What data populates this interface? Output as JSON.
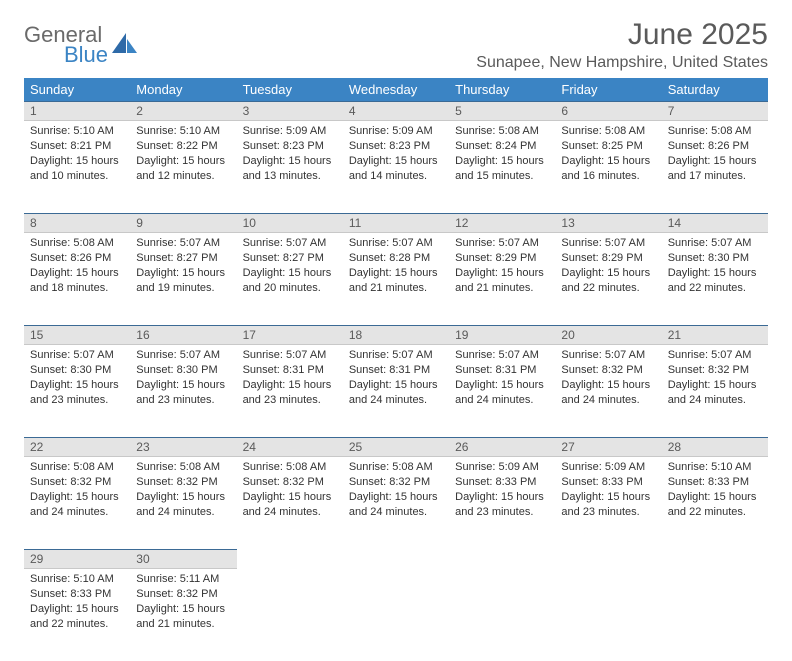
{
  "brand": {
    "part1": "General",
    "part2": "Blue"
  },
  "title": "June 2025",
  "location": "Sunapee, New Hampshire, United States",
  "colors": {
    "header_bg": "#3b84c4",
    "header_fg": "#ffffff",
    "daynum_bg": "#e4e4e4",
    "daynum_border_top": "#3b6a95",
    "text": "#333333",
    "title_color": "#5a5a5a"
  },
  "day_labels": [
    "Sunday",
    "Monday",
    "Tuesday",
    "Wednesday",
    "Thursday",
    "Friday",
    "Saturday"
  ],
  "weeks": [
    [
      {
        "n": "1",
        "sunrise": "Sunrise: 5:10 AM",
        "sunset": "Sunset: 8:21 PM",
        "daylight": "Daylight: 15 hours and 10 minutes."
      },
      {
        "n": "2",
        "sunrise": "Sunrise: 5:10 AM",
        "sunset": "Sunset: 8:22 PM",
        "daylight": "Daylight: 15 hours and 12 minutes."
      },
      {
        "n": "3",
        "sunrise": "Sunrise: 5:09 AM",
        "sunset": "Sunset: 8:23 PM",
        "daylight": "Daylight: 15 hours and 13 minutes."
      },
      {
        "n": "4",
        "sunrise": "Sunrise: 5:09 AM",
        "sunset": "Sunset: 8:23 PM",
        "daylight": "Daylight: 15 hours and 14 minutes."
      },
      {
        "n": "5",
        "sunrise": "Sunrise: 5:08 AM",
        "sunset": "Sunset: 8:24 PM",
        "daylight": "Daylight: 15 hours and 15 minutes."
      },
      {
        "n": "6",
        "sunrise": "Sunrise: 5:08 AM",
        "sunset": "Sunset: 8:25 PM",
        "daylight": "Daylight: 15 hours and 16 minutes."
      },
      {
        "n": "7",
        "sunrise": "Sunrise: 5:08 AM",
        "sunset": "Sunset: 8:26 PM",
        "daylight": "Daylight: 15 hours and 17 minutes."
      }
    ],
    [
      {
        "n": "8",
        "sunrise": "Sunrise: 5:08 AM",
        "sunset": "Sunset: 8:26 PM",
        "daylight": "Daylight: 15 hours and 18 minutes."
      },
      {
        "n": "9",
        "sunrise": "Sunrise: 5:07 AM",
        "sunset": "Sunset: 8:27 PM",
        "daylight": "Daylight: 15 hours and 19 minutes."
      },
      {
        "n": "10",
        "sunrise": "Sunrise: 5:07 AM",
        "sunset": "Sunset: 8:27 PM",
        "daylight": "Daylight: 15 hours and 20 minutes."
      },
      {
        "n": "11",
        "sunrise": "Sunrise: 5:07 AM",
        "sunset": "Sunset: 8:28 PM",
        "daylight": "Daylight: 15 hours and 21 minutes."
      },
      {
        "n": "12",
        "sunrise": "Sunrise: 5:07 AM",
        "sunset": "Sunset: 8:29 PM",
        "daylight": "Daylight: 15 hours and 21 minutes."
      },
      {
        "n": "13",
        "sunrise": "Sunrise: 5:07 AM",
        "sunset": "Sunset: 8:29 PM",
        "daylight": "Daylight: 15 hours and 22 minutes."
      },
      {
        "n": "14",
        "sunrise": "Sunrise: 5:07 AM",
        "sunset": "Sunset: 8:30 PM",
        "daylight": "Daylight: 15 hours and 22 minutes."
      }
    ],
    [
      {
        "n": "15",
        "sunrise": "Sunrise: 5:07 AM",
        "sunset": "Sunset: 8:30 PM",
        "daylight": "Daylight: 15 hours and 23 minutes."
      },
      {
        "n": "16",
        "sunrise": "Sunrise: 5:07 AM",
        "sunset": "Sunset: 8:30 PM",
        "daylight": "Daylight: 15 hours and 23 minutes."
      },
      {
        "n": "17",
        "sunrise": "Sunrise: 5:07 AM",
        "sunset": "Sunset: 8:31 PM",
        "daylight": "Daylight: 15 hours and 23 minutes."
      },
      {
        "n": "18",
        "sunrise": "Sunrise: 5:07 AM",
        "sunset": "Sunset: 8:31 PM",
        "daylight": "Daylight: 15 hours and 24 minutes."
      },
      {
        "n": "19",
        "sunrise": "Sunrise: 5:07 AM",
        "sunset": "Sunset: 8:31 PM",
        "daylight": "Daylight: 15 hours and 24 minutes."
      },
      {
        "n": "20",
        "sunrise": "Sunrise: 5:07 AM",
        "sunset": "Sunset: 8:32 PM",
        "daylight": "Daylight: 15 hours and 24 minutes."
      },
      {
        "n": "21",
        "sunrise": "Sunrise: 5:07 AM",
        "sunset": "Sunset: 8:32 PM",
        "daylight": "Daylight: 15 hours and 24 minutes."
      }
    ],
    [
      {
        "n": "22",
        "sunrise": "Sunrise: 5:08 AM",
        "sunset": "Sunset: 8:32 PM",
        "daylight": "Daylight: 15 hours and 24 minutes."
      },
      {
        "n": "23",
        "sunrise": "Sunrise: 5:08 AM",
        "sunset": "Sunset: 8:32 PM",
        "daylight": "Daylight: 15 hours and 24 minutes."
      },
      {
        "n": "24",
        "sunrise": "Sunrise: 5:08 AM",
        "sunset": "Sunset: 8:32 PM",
        "daylight": "Daylight: 15 hours and 24 minutes."
      },
      {
        "n": "25",
        "sunrise": "Sunrise: 5:08 AM",
        "sunset": "Sunset: 8:32 PM",
        "daylight": "Daylight: 15 hours and 24 minutes."
      },
      {
        "n": "26",
        "sunrise": "Sunrise: 5:09 AM",
        "sunset": "Sunset: 8:33 PM",
        "daylight": "Daylight: 15 hours and 23 minutes."
      },
      {
        "n": "27",
        "sunrise": "Sunrise: 5:09 AM",
        "sunset": "Sunset: 8:33 PM",
        "daylight": "Daylight: 15 hours and 23 minutes."
      },
      {
        "n": "28",
        "sunrise": "Sunrise: 5:10 AM",
        "sunset": "Sunset: 8:33 PM",
        "daylight": "Daylight: 15 hours and 22 minutes."
      }
    ],
    [
      {
        "n": "29",
        "sunrise": "Sunrise: 5:10 AM",
        "sunset": "Sunset: 8:33 PM",
        "daylight": "Daylight: 15 hours and 22 minutes."
      },
      {
        "n": "30",
        "sunrise": "Sunrise: 5:11 AM",
        "sunset": "Sunset: 8:32 PM",
        "daylight": "Daylight: 15 hours and 21 minutes."
      },
      null,
      null,
      null,
      null,
      null
    ]
  ]
}
